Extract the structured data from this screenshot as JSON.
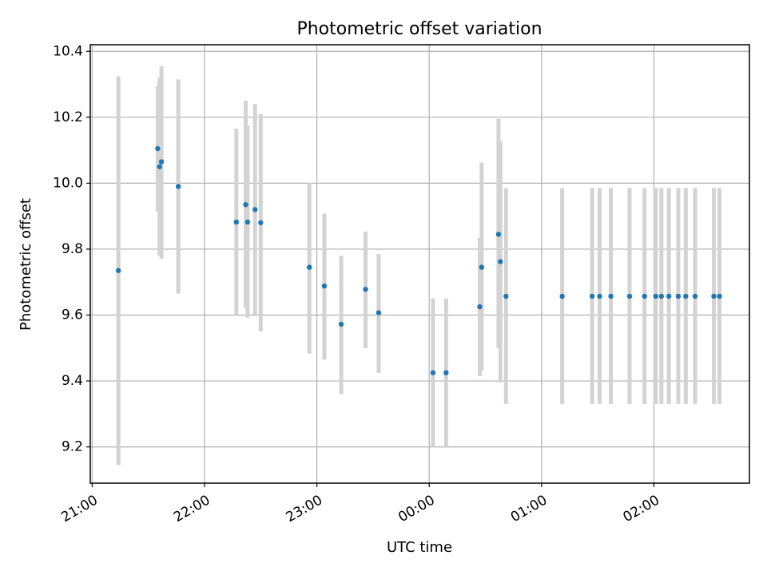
{
  "chart_data": {
    "type": "scatter",
    "title": "Photometric offset variation",
    "xlabel": "UTC time",
    "ylabel": "Photometric offset",
    "x_ticks": [
      "21:00",
      "22:00",
      "23:00",
      "00:00",
      "01:00",
      "02:00"
    ],
    "y_ticks": [
      "9.2",
      "9.4",
      "9.6",
      "9.8",
      "10.0",
      "10.2",
      "10.4"
    ],
    "y_tick_values": [
      9.2,
      9.4,
      9.6,
      9.8,
      10.0,
      10.2,
      10.4
    ],
    "xlim": [
      "20:59",
      "02:51"
    ],
    "ylim": [
      9.09,
      10.42
    ],
    "grid": true,
    "point_color": "#1f77b4",
    "errorbar_color": "#d3d3d3",
    "series": [
      {
        "time": [
          "21:14",
          "21:35",
          "21:36",
          "21:37",
          "21:46",
          "22:17",
          "22:22",
          "22:23",
          "22:27",
          "22:30",
          "22:56",
          "23:04",
          "23:13",
          "23:26",
          "23:33",
          "00:02",
          "00:09",
          "00:27",
          "00:28",
          "00:37",
          "00:38",
          "00:41",
          "01:11",
          "01:27",
          "01:31",
          "01:37",
          "01:47",
          "01:55",
          "02:01",
          "02:04",
          "02:08",
          "02:13",
          "02:17",
          "02:22",
          "02:32",
          "02:35"
        ],
        "y": [
          9.735,
          10.105,
          10.05,
          10.065,
          9.99,
          9.882,
          9.935,
          9.882,
          9.92,
          9.88,
          9.745,
          9.688,
          9.572,
          9.678,
          9.607,
          9.425,
          9.425,
          9.625,
          9.745,
          9.845,
          9.762,
          9.657,
          9.657,
          9.657,
          9.657,
          9.657,
          9.657,
          9.657,
          9.657,
          9.657,
          9.657,
          9.657,
          9.657,
          9.657,
          9.657,
          9.657
        ],
        "yerr_low": [
          9.145,
          9.915,
          9.78,
          9.77,
          9.665,
          9.602,
          9.622,
          9.592,
          9.602,
          9.55,
          9.483,
          9.465,
          9.36,
          9.5,
          9.425,
          9.2,
          9.2,
          9.415,
          9.432,
          9.5,
          9.395,
          9.33,
          9.33,
          9.33,
          9.33,
          9.33,
          9.33,
          9.33,
          9.33,
          9.33,
          9.33,
          9.33,
          9.33,
          9.33,
          9.33,
          9.33
        ],
        "yerr_high": [
          10.325,
          10.295,
          10.32,
          10.355,
          10.315,
          10.165,
          10.25,
          10.175,
          10.24,
          10.21,
          10.002,
          9.908,
          9.78,
          9.853,
          9.785,
          9.65,
          9.65,
          9.835,
          10.062,
          10.195,
          10.128,
          9.985,
          9.985,
          9.985,
          9.985,
          9.985,
          9.985,
          9.985,
          9.985,
          9.985,
          9.985,
          9.985,
          9.985,
          9.985,
          9.985,
          9.985
        ]
      }
    ]
  }
}
